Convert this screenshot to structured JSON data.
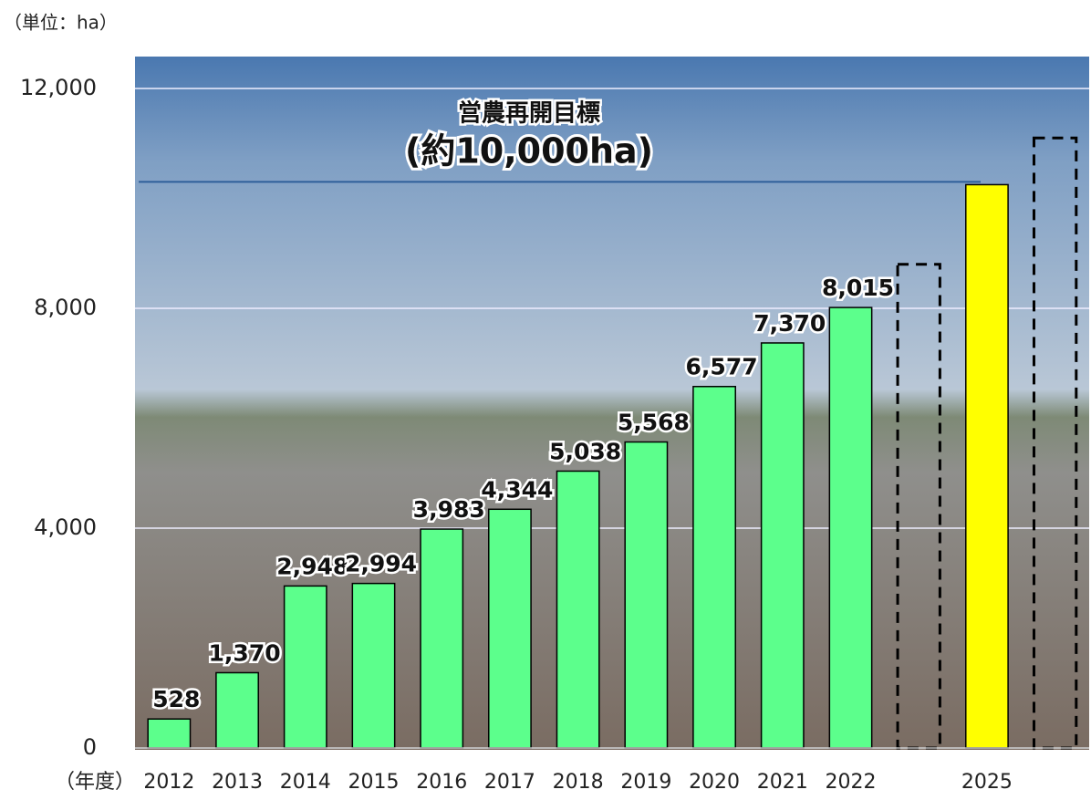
{
  "chart_data": {
    "type": "bar",
    "unit_label": "（単位：ha）",
    "x_label": "（年度）",
    "annotation": {
      "line1": "営農再開目標",
      "line2": "(約10,000ha)"
    },
    "target_line": 10300,
    "categories": [
      "2012",
      "2013",
      "2014",
      "2015",
      "2016",
      "2017",
      "2018",
      "2019",
      "2020",
      "2021",
      "2022",
      null,
      "2025",
      null
    ],
    "values": [
      528,
      1370,
      2948,
      2994,
      3983,
      4344,
      5038,
      5568,
      6577,
      7370,
      8015,
      null,
      10250,
      null
    ],
    "value_labels": [
      "528",
      "1,370",
      "2,948",
      "2,994",
      "3,983",
      "4,344",
      "5,038",
      "5,568",
      "6,577",
      "7,370",
      "8,015",
      null,
      null,
      null
    ],
    "outline_values": [
      null,
      null,
      null,
      null,
      null,
      null,
      null,
      null,
      null,
      null,
      null,
      8800,
      null,
      11100
    ],
    "colors": [
      "#5cff8c",
      "#5cff8c",
      "#5cff8c",
      "#5cff8c",
      "#5cff8c",
      "#5cff8c",
      "#5cff8c",
      "#5cff8c",
      "#5cff8c",
      "#5cff8c",
      "#5cff8c",
      null,
      "#ffff00",
      null
    ],
    "ylim": [
      0,
      12000
    ],
    "yticks": [
      0,
      {
        "value": 4000,
        "label": "4,000"
      },
      {
        "value": 8000,
        "label": "8,000"
      },
      {
        "value": 12000,
        "label": "12,000"
      }
    ],
    "grid": true
  }
}
